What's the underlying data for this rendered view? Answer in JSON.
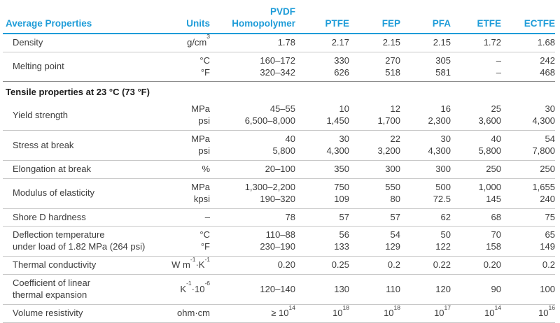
{
  "colors": {
    "accent": "#1e9cd8",
    "rule_light": "#c8c8c8",
    "rule_dark": "#8c8c8c",
    "text": "#3c3c3c",
    "section_text": "#1b1b1b"
  },
  "table": {
    "header": {
      "property_label": "Average Properties",
      "units_label": "Units",
      "columns": [
        {
          "line1": "PVDF",
          "line2": "Homopolymer"
        },
        {
          "line1": "",
          "line2": "PTFE"
        },
        {
          "line1": "",
          "line2": "FEP"
        },
        {
          "line1": "",
          "line2": "PFA"
        },
        {
          "line1": "",
          "line2": "ETFE"
        },
        {
          "line1": "",
          "line2": "ECTFE"
        }
      ]
    },
    "rows": [
      {
        "type": "data",
        "property": [
          "Density"
        ],
        "units": [
          "g/cm^3"
        ],
        "values": [
          [
            "1.78",
            "2.17",
            "2.15",
            "2.15",
            "1.72",
            "1.68"
          ]
        ]
      },
      {
        "type": "data",
        "property": [
          "Melting point"
        ],
        "units": [
          "°C",
          "°F"
        ],
        "values": [
          [
            "160–172",
            "330",
            "270",
            "305",
            "–",
            "242"
          ],
          [
            "320–342",
            "626",
            "518",
            "581",
            "–",
            "468"
          ]
        ]
      },
      {
        "type": "section",
        "label": "Tensile properties at 23 °C (73 °F)"
      },
      {
        "type": "data",
        "property": [
          "Yield strength"
        ],
        "units": [
          "MPa",
          "psi"
        ],
        "values": [
          [
            "45–55",
            "10",
            "12",
            "16",
            "25",
            "30"
          ],
          [
            "6,500–8,000",
            "1,450",
            "1,700",
            "2,300",
            "3,600",
            "4,300"
          ]
        ]
      },
      {
        "type": "data",
        "property": [
          "Stress at break"
        ],
        "units": [
          "MPa",
          "psi"
        ],
        "values": [
          [
            "40",
            "30",
            "22",
            "30",
            "40",
            "54"
          ],
          [
            "5,800",
            "4,300",
            "3,200",
            "4,300",
            "5,800",
            "7,800"
          ]
        ]
      },
      {
        "type": "data",
        "property": [
          "Elongation at break"
        ],
        "units": [
          "%"
        ],
        "values": [
          [
            "20–100",
            "350",
            "300",
            "300",
            "250",
            "250"
          ]
        ]
      },
      {
        "type": "data",
        "property": [
          "Modulus of elasticity"
        ],
        "units": [
          "MPa",
          "kpsi"
        ],
        "values": [
          [
            "1,300–2,200",
            "750",
            "550",
            "500",
            "1,000",
            "1,655"
          ],
          [
            "190–320",
            "109",
            "80",
            "72.5",
            "145",
            "240"
          ]
        ]
      },
      {
        "type": "data",
        "property": [
          "Shore D hardness"
        ],
        "units": [
          "–"
        ],
        "values": [
          [
            "78",
            "57",
            "57",
            "62",
            "68",
            "75"
          ]
        ]
      },
      {
        "type": "data",
        "property": [
          "Deflection temperature",
          "under load of 1.82 MPa (264 psi)"
        ],
        "units": [
          "°C",
          "°F"
        ],
        "values": [
          [
            "110–88",
            "56",
            "54",
            "50",
            "70",
            "65"
          ],
          [
            "230–190",
            "133",
            "129",
            "122",
            "158",
            "149"
          ]
        ]
      },
      {
        "type": "data",
        "property": [
          "Thermal conductivity"
        ],
        "units": [
          "W m^-1·K^-1"
        ],
        "values": [
          [
            "0.20",
            "0.25",
            "0.2",
            "0.22",
            "0.20",
            "0.2"
          ]
        ]
      },
      {
        "type": "data",
        "property": [
          "Coefficient of linear",
          "thermal expansion"
        ],
        "units": [
          "K^-1·10^-6"
        ],
        "values": [
          [
            "120–140",
            "130",
            "110",
            "120",
            "90",
            "100"
          ]
        ]
      },
      {
        "type": "data",
        "property": [
          "Volume resistivity"
        ],
        "units": [
          "ohm·cm"
        ],
        "values": [
          [
            "≥ 10^14",
            "10^18",
            "10^18",
            "10^17",
            "10^14",
            "10^16"
          ]
        ]
      }
    ]
  }
}
